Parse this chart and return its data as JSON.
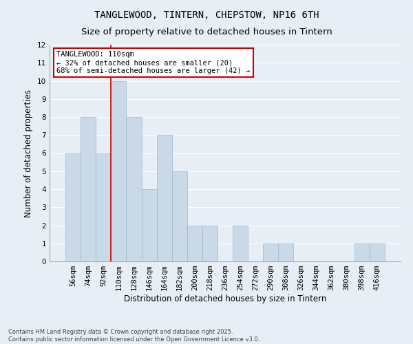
{
  "title": "TANGLEWOOD, TINTERN, CHEPSTOW, NP16 6TH",
  "subtitle": "Size of property relative to detached houses in Tintern",
  "xlabel": "Distribution of detached houses by size in Tintern",
  "ylabel": "Number of detached properties",
  "categories": [
    "56sqm",
    "74sqm",
    "92sqm",
    "110sqm",
    "128sqm",
    "146sqm",
    "164sqm",
    "182sqm",
    "200sqm",
    "218sqm",
    "236sqm",
    "254sqm",
    "272sqm",
    "290sqm",
    "308sqm",
    "326sqm",
    "344sqm",
    "362sqm",
    "380sqm",
    "398sqm",
    "416sqm"
  ],
  "values": [
    6,
    8,
    6,
    10,
    8,
    4,
    7,
    5,
    2,
    2,
    0,
    2,
    0,
    1,
    1,
    0,
    0,
    0,
    0,
    1,
    1
  ],
  "bar_color": "#c9d9e8",
  "bar_edge_color": "#a0b8cc",
  "highlight_index": 3,
  "highlight_line_color": "#cc0000",
  "ylim": [
    0,
    12
  ],
  "yticks": [
    0,
    1,
    2,
    3,
    4,
    5,
    6,
    7,
    8,
    9,
    10,
    11,
    12
  ],
  "annotation_text": "TANGLEWOOD: 110sqm\n← 32% of detached houses are smaller (20)\n68% of semi-detached houses are larger (42) →",
  "annotation_box_color": "#ffffff",
  "annotation_box_edge": "#cc0000",
  "footer_text": "Contains HM Land Registry data © Crown copyright and database right 2025.\nContains public sector information licensed under the Open Government Licence v3.0.",
  "background_color": "#e8eef5",
  "grid_color": "#ffffff",
  "title_fontsize": 10,
  "subtitle_fontsize": 9.5,
  "axis_fontsize": 8.5,
  "tick_fontsize": 7.5,
  "footer_fontsize": 6
}
